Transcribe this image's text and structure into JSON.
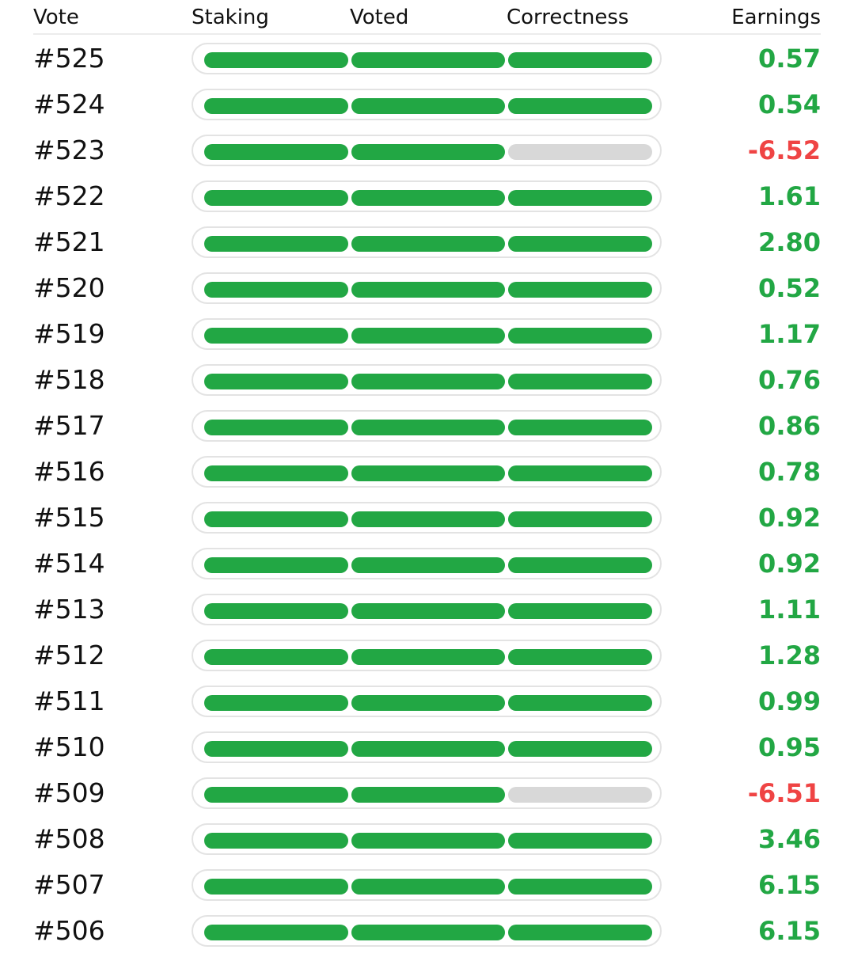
{
  "colors": {
    "positive": "#22a744",
    "negative": "#ef4444",
    "empty": "#d8d8d8"
  },
  "headers": {
    "vote": "Vote",
    "staking": "Staking",
    "voted": "Voted",
    "correctness": "Correctness",
    "earnings": "Earnings"
  },
  "rows": [
    {
      "vote": "#525",
      "staking": true,
      "voted": true,
      "correct": true,
      "earnings": "0.57",
      "status": "positive"
    },
    {
      "vote": "#524",
      "staking": true,
      "voted": true,
      "correct": true,
      "earnings": "0.54",
      "status": "positive"
    },
    {
      "vote": "#523",
      "staking": true,
      "voted": true,
      "correct": false,
      "earnings": "-6.52",
      "status": "negative"
    },
    {
      "vote": "#522",
      "staking": true,
      "voted": true,
      "correct": true,
      "earnings": "1.61",
      "status": "positive"
    },
    {
      "vote": "#521",
      "staking": true,
      "voted": true,
      "correct": true,
      "earnings": "2.80",
      "status": "positive"
    },
    {
      "vote": "#520",
      "staking": true,
      "voted": true,
      "correct": true,
      "earnings": "0.52",
      "status": "positive"
    },
    {
      "vote": "#519",
      "staking": true,
      "voted": true,
      "correct": true,
      "earnings": "1.17",
      "status": "positive"
    },
    {
      "vote": "#518",
      "staking": true,
      "voted": true,
      "correct": true,
      "earnings": "0.76",
      "status": "positive"
    },
    {
      "vote": "#517",
      "staking": true,
      "voted": true,
      "correct": true,
      "earnings": "0.86",
      "status": "positive"
    },
    {
      "vote": "#516",
      "staking": true,
      "voted": true,
      "correct": true,
      "earnings": "0.78",
      "status": "positive"
    },
    {
      "vote": "#515",
      "staking": true,
      "voted": true,
      "correct": true,
      "earnings": "0.92",
      "status": "positive"
    },
    {
      "vote": "#514",
      "staking": true,
      "voted": true,
      "correct": true,
      "earnings": "0.92",
      "status": "positive"
    },
    {
      "vote": "#513",
      "staking": true,
      "voted": true,
      "correct": true,
      "earnings": "1.11",
      "status": "positive"
    },
    {
      "vote": "#512",
      "staking": true,
      "voted": true,
      "correct": true,
      "earnings": "1.28",
      "status": "positive"
    },
    {
      "vote": "#511",
      "staking": true,
      "voted": true,
      "correct": true,
      "earnings": "0.99",
      "status": "positive"
    },
    {
      "vote": "#510",
      "staking": true,
      "voted": true,
      "correct": true,
      "earnings": "0.95",
      "status": "positive"
    },
    {
      "vote": "#509",
      "staking": true,
      "voted": true,
      "correct": false,
      "earnings": "-6.51",
      "status": "negative"
    },
    {
      "vote": "#508",
      "staking": true,
      "voted": true,
      "correct": true,
      "earnings": "3.46",
      "status": "positive"
    },
    {
      "vote": "#507",
      "staking": true,
      "voted": true,
      "correct": true,
      "earnings": "6.15",
      "status": "positive"
    },
    {
      "vote": "#506",
      "staking": true,
      "voted": true,
      "correct": true,
      "earnings": "6.15",
      "status": "positive"
    }
  ]
}
